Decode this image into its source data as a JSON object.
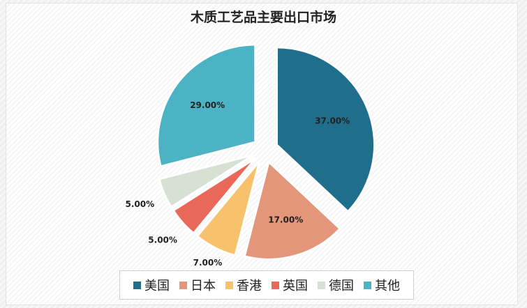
{
  "chart_data": {
    "type": "pie",
    "title": "木质工艺品主要出口市场",
    "categories": [
      "美国",
      "日本",
      "香港",
      "英国",
      "德国",
      "其他"
    ],
    "values": [
      37.0,
      17.0,
      7.0,
      5.0,
      5.0,
      29.0
    ],
    "labels": [
      "37.00%",
      "17.00%",
      "7.00%",
      "5.00%",
      "5.00%",
      "29.00%"
    ],
    "colors": [
      "#1f6e8c",
      "#e4967a",
      "#f7c26b",
      "#e8695a",
      "#d6e1d4",
      "#4bb3c3"
    ],
    "exploded": true,
    "legend_position": "bottom"
  }
}
